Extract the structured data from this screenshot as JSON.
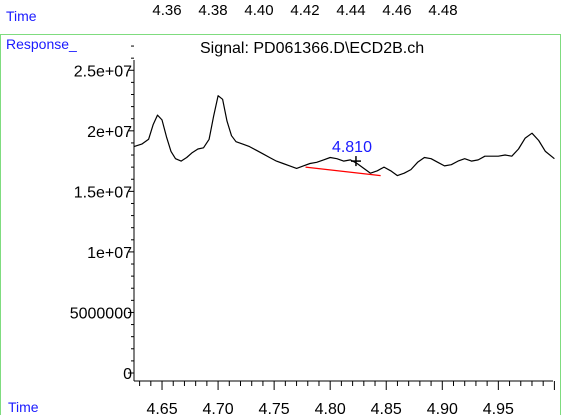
{
  "top_strip": {
    "time_label": "Time",
    "tick_labels": [
      "4.36",
      "4.38",
      "4.40",
      "4.42",
      "4.44",
      "4.46",
      "4.48"
    ]
  },
  "response_label": "Response_",
  "bottom_time_label": "Time",
  "chart_data": {
    "type": "line",
    "title": "Signal: PD061366.D\\ECD2B.ch",
    "xlabel": "Time",
    "ylabel": "Response_",
    "xlim": [
      4.625,
      5.005
    ],
    "ylim": [
      0,
      27500000
    ],
    "x_ticks": [
      4.65,
      4.7,
      4.75,
      4.8,
      4.85,
      4.9,
      4.95
    ],
    "x_tick_labels": [
      "4.65",
      "4.70",
      "4.75",
      "4.80",
      "4.85",
      "4.90",
      "4.95"
    ],
    "y_ticks": [
      0,
      5000000,
      10000000,
      15000000,
      20000000,
      25000000
    ],
    "y_tick_labels": [
      "0",
      "5000000",
      "1e+07",
      "1.5e+07",
      "2e+07",
      "2.5e+07"
    ],
    "grid": false,
    "series": [
      {
        "color": "#000000",
        "x": [
          4.625,
          4.632,
          4.638,
          4.642,
          4.646,
          4.65,
          4.654,
          4.658,
          4.662,
          4.667,
          4.672,
          4.677,
          4.682,
          4.687,
          4.692,
          4.696,
          4.7,
          4.704,
          4.708,
          4.712,
          4.716,
          4.722,
          4.728,
          4.734,
          4.74,
          4.746,
          4.752,
          4.758,
          4.764,
          4.77,
          4.776,
          4.782,
          4.788,
          4.794,
          4.8,
          4.806,
          4.812,
          4.818,
          4.824,
          4.83,
          4.836,
          4.842,
          4.848,
          4.854,
          4.86,
          4.866,
          4.872,
          4.878,
          4.884,
          4.89,
          4.896,
          4.902,
          4.908,
          4.914,
          4.92,
          4.926,
          4.932,
          4.938,
          4.944,
          4.95,
          4.956,
          4.962,
          4.968,
          4.974,
          4.98,
          4.986,
          4.992,
          5.0
        ],
        "y": [
          18700000,
          18900000,
          19300000,
          20500000,
          21300000,
          20900000,
          19500000,
          18300000,
          17700000,
          17500000,
          17800000,
          18200000,
          18500000,
          18600000,
          19300000,
          21200000,
          22900000,
          22600000,
          20800000,
          19600000,
          19100000,
          18900000,
          18700000,
          18400000,
          18100000,
          17800000,
          17500000,
          17300000,
          17100000,
          16900000,
          17100000,
          17300000,
          17400000,
          17600000,
          17800000,
          17700000,
          17500000,
          17600000,
          17300000,
          16900000,
          16500000,
          16700000,
          17000000,
          16700000,
          16300000,
          16500000,
          16800000,
          17400000,
          17800000,
          17700000,
          17400000,
          17100000,
          17200000,
          17500000,
          17700000,
          17500000,
          17600000,
          17900000,
          17900000,
          17900000,
          18000000,
          17900000,
          18500000,
          19400000,
          19800000,
          19200000,
          18300000,
          17700000
        ]
      }
    ],
    "baseline": {
      "color": "#ff0000",
      "x": [
        4.778,
        4.845
      ],
      "y": [
        17000000,
        16300000
      ]
    },
    "peak_annotation": {
      "label": "4.810",
      "label_color": "#1a1aff",
      "x": 4.823,
      "y": 17500000
    }
  }
}
